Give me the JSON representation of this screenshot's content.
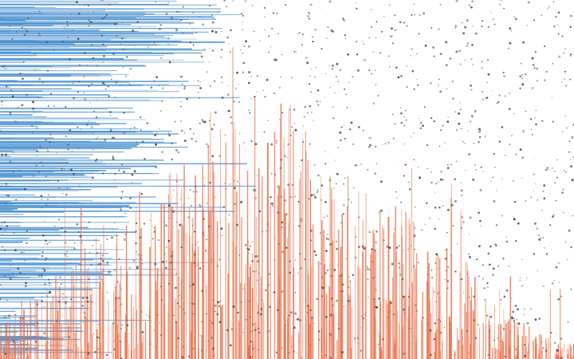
{
  "chart_data": {
    "type": "scatter",
    "title": "",
    "xlabel": "",
    "ylabel": "",
    "grid": false,
    "legend": "none",
    "axes_visible": false,
    "xlim": [
      0,
      720
    ],
    "ylim": [
      0,
      450
    ],
    "colors": {
      "background": "#ffffff",
      "horizontal_series": "#4a90d0",
      "vertical_series": "#e8704a",
      "points": "#404040"
    },
    "layers": [
      {
        "kind": "horizontal-lines",
        "color": "#4a90d0",
        "anchor": "left",
        "description_count": 320,
        "density": {
          "y_range": [
            0,
            450
          ],
          "max_length_x": [
            0,
            460
          ]
        }
      },
      {
        "kind": "vertical-lines",
        "color": "#e8704a",
        "anchor": "bottom",
        "description_count": 520,
        "density": {
          "x_range": [
            0,
            720
          ],
          "peak_x": 335,
          "max_height_y": 450
        }
      },
      {
        "kind": "points",
        "color": "#404040",
        "description_count": 1600,
        "density": {
          "x_range": [
            0,
            720
          ],
          "y_range": [
            0,
            450
          ]
        }
      }
    ]
  }
}
